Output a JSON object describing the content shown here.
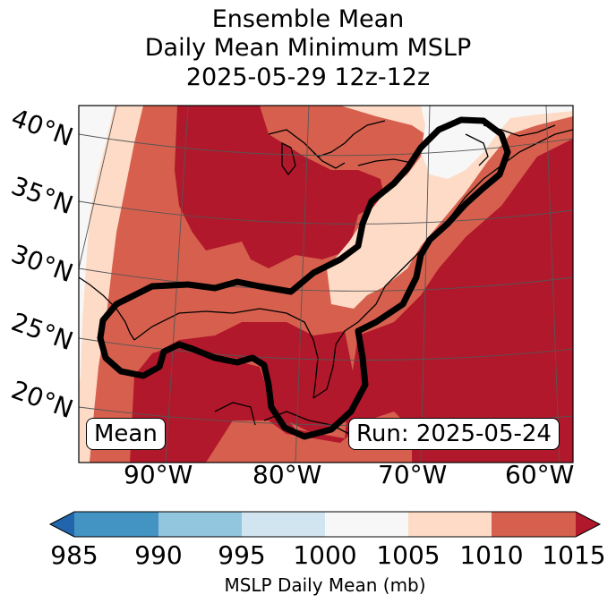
{
  "title_lines": [
    "Ensemble Mean",
    "Daily Mean Minimum MSLP",
    "2025-05-29 12z-12z"
  ],
  "lat_labels": [
    "40°N",
    "35°N",
    "30°N",
    "25°N",
    "20°N"
  ],
  "lon_labels": [
    "90°W",
    "80°W",
    "70°W",
    "60°W"
  ],
  "mean_box": "Mean",
  "run_box": "Run: 2025-05-24",
  "colorbar": {
    "label": "MSLP Daily Mean (mb)",
    "ticks": [
      "985",
      "990",
      "995",
      "1000",
      "1005",
      "1010",
      "1015"
    ],
    "colors": {
      "under": "#2166ac",
      "b985_990": "#4393c3",
      "b990_995": "#92c5de",
      "b995_1000": "#d1e5f0",
      "b1000_1005": "#f7f7f7",
      "b1005_1010": "#fddbc7",
      "b1010_1015": "#d6604d",
      "over": "#b2182b"
    }
  },
  "map_colors": {
    "p1000_1005": "#f7f7f7",
    "p1005_1010": "#fddbc7",
    "p1010_1015": "#d6604d",
    "p_over_1015": "#b2182b",
    "contour": "#000000"
  }
}
